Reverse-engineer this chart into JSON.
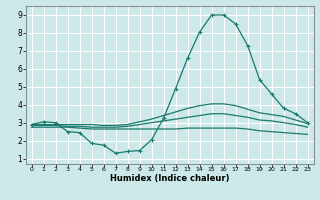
{
  "xlabel": "Humidex (Indice chaleur)",
  "background_color": "#cce8e8",
  "grid_color": "#ffffff",
  "line_color": "#1a7a6e",
  "xlim": [
    -0.5,
    23.5
  ],
  "ylim": [
    0.7,
    9.5
  ],
  "xticks": [
    0,
    1,
    2,
    3,
    4,
    5,
    6,
    7,
    8,
    9,
    10,
    11,
    12,
    13,
    14,
    15,
    16,
    17,
    18,
    19,
    20,
    21,
    22,
    23
  ],
  "yticks": [
    1,
    2,
    3,
    4,
    5,
    6,
    7,
    8,
    9
  ],
  "curve1_x": [
    0,
    1,
    2,
    3,
    4,
    5,
    6,
    7,
    8,
    9,
    10,
    11,
    12,
    13,
    14,
    15,
    16,
    17,
    18,
    19,
    20,
    21,
    22,
    23
  ],
  "curve1_y": [
    2.9,
    3.05,
    3.0,
    2.5,
    2.45,
    1.85,
    1.75,
    1.3,
    1.4,
    1.45,
    2.05,
    3.25,
    4.9,
    6.6,
    8.05,
    9.0,
    9.0,
    8.5,
    7.3,
    5.4,
    4.6,
    3.8,
    3.5,
    3.0
  ],
  "curve2_x": [
    0,
    1,
    2,
    3,
    4,
    5,
    6,
    7,
    8,
    9,
    10,
    11,
    12,
    13,
    14,
    15,
    16,
    17,
    18,
    19,
    20,
    21,
    22,
    23
  ],
  "curve2_y": [
    2.9,
    2.9,
    2.9,
    2.9,
    2.9,
    2.9,
    2.85,
    2.85,
    2.9,
    3.05,
    3.2,
    3.4,
    3.6,
    3.8,
    3.95,
    4.05,
    4.05,
    3.95,
    3.75,
    3.55,
    3.45,
    3.35,
    3.15,
    2.95
  ],
  "curve3_x": [
    0,
    1,
    2,
    3,
    4,
    5,
    6,
    7,
    8,
    9,
    10,
    11,
    12,
    13,
    14,
    15,
    16,
    17,
    18,
    19,
    20,
    21,
    22,
    23
  ],
  "curve3_y": [
    2.85,
    2.85,
    2.85,
    2.8,
    2.8,
    2.75,
    2.75,
    2.75,
    2.8,
    2.9,
    3.0,
    3.1,
    3.2,
    3.3,
    3.4,
    3.5,
    3.5,
    3.4,
    3.3,
    3.15,
    3.1,
    3.0,
    2.9,
    2.75
  ],
  "curve4_x": [
    0,
    1,
    2,
    3,
    4,
    5,
    6,
    7,
    8,
    9,
    10,
    11,
    12,
    13,
    14,
    15,
    16,
    17,
    18,
    19,
    20,
    21,
    22,
    23
  ],
  "curve4_y": [
    2.75,
    2.75,
    2.75,
    2.75,
    2.7,
    2.65,
    2.65,
    2.65,
    2.65,
    2.65,
    2.65,
    2.65,
    2.65,
    2.7,
    2.7,
    2.7,
    2.7,
    2.7,
    2.65,
    2.55,
    2.5,
    2.45,
    2.4,
    2.35
  ]
}
